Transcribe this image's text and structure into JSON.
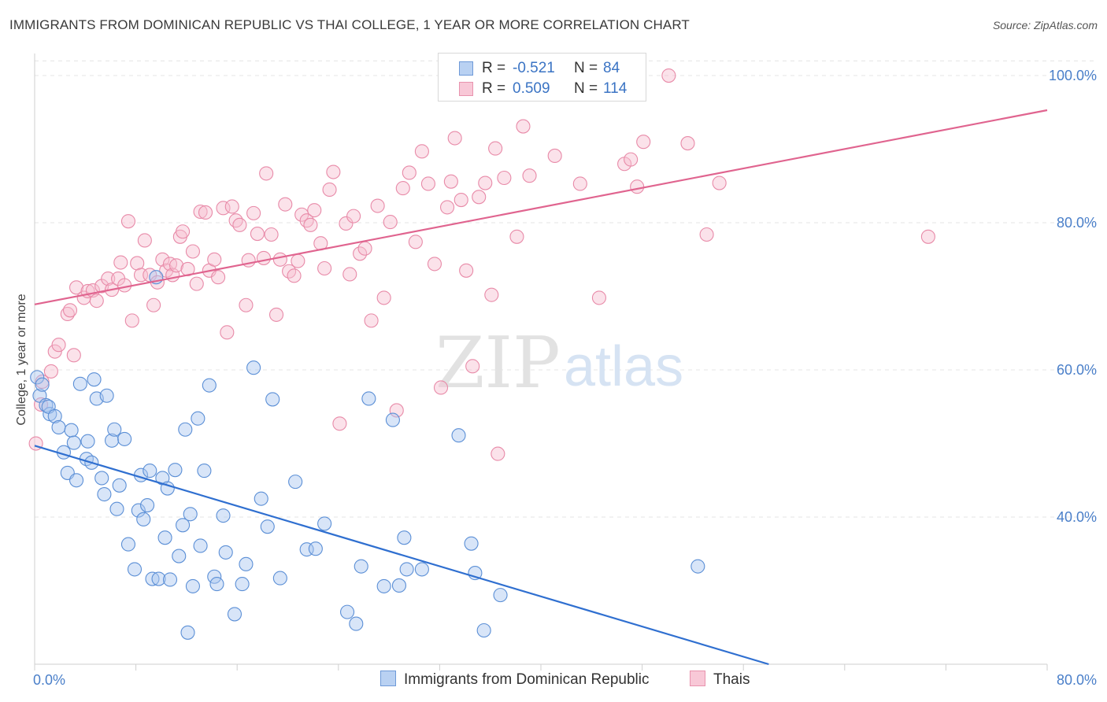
{
  "title": "IMMIGRANTS FROM DOMINICAN REPUBLIC VS THAI COLLEGE, 1 YEAR OR MORE CORRELATION CHART",
  "source": "Source: ZipAtlas.com",
  "watermark": {
    "zip": "ZIP",
    "atlas": "atlas"
  },
  "colors": {
    "blue_fill": "#a9c6ef",
    "blue_stroke": "#5b8fd6",
    "blue_line": "#2f6fd0",
    "pink_fill": "#f6bfd0",
    "pink_stroke": "#e88aa8",
    "pink_line": "#e0648f",
    "grid": "#e4e4e4",
    "tick_text": "#4a7fc9"
  },
  "stats": [
    {
      "r_label": "R =",
      "r_value": "-0.521",
      "n_label": "N =",
      "n_value": "84",
      "color": "blue"
    },
    {
      "r_label": "R =",
      "r_value": "0.509",
      "n_label": "N =",
      "n_value": "114",
      "color": "pink"
    }
  ],
  "legend": [
    {
      "label": "Immigrants from Dominican Republic",
      "color": "blue"
    },
    {
      "label": "Thais",
      "color": "pink"
    }
  ],
  "chart_data": {
    "type": "scatter",
    "title": "IMMIGRANTS FROM DOMINICAN REPUBLIC VS THAI COLLEGE, 1 YEAR OR MORE CORRELATION CHART",
    "xlabel": "",
    "ylabel": "College, 1 year or more",
    "xlim": [
      0,
      80
    ],
    "ylim": [
      20,
      103
    ],
    "x_tick_labels": [
      "0.0%",
      "80.0%"
    ],
    "y_ticks": [
      40,
      60,
      80,
      100
    ],
    "y_tick_labels": [
      "40.0%",
      "60.0%",
      "80.0%",
      "100.0%"
    ],
    "grid": true,
    "legend_position": "bottom",
    "series": [
      {
        "name": "Immigrants from Dominican Republic",
        "color": "blue",
        "trend": {
          "x": [
            0,
            58
          ],
          "y": [
            49.7,
            20
          ]
        },
        "points": [
          [
            0.2,
            59
          ],
          [
            0.4,
            56.5
          ],
          [
            0.9,
            55.2
          ],
          [
            1.2,
            54
          ],
          [
            1.1,
            55
          ],
          [
            1.6,
            53.7
          ],
          [
            1.9,
            52.2
          ],
          [
            2.3,
            48.8
          ],
          [
            2.6,
            46
          ],
          [
            2.9,
            51.8
          ],
          [
            3.1,
            50.1
          ],
          [
            3.3,
            45
          ],
          [
            3.6,
            58.1
          ],
          [
            4.1,
            47.9
          ],
          [
            4.2,
            50.3
          ],
          [
            4.5,
            47.4
          ],
          [
            4.7,
            58.7
          ],
          [
            4.9,
            56.1
          ],
          [
            5.3,
            45.3
          ],
          [
            5.5,
            43.1
          ],
          [
            5.7,
            56.5
          ],
          [
            6.1,
            50.4
          ],
          [
            6.3,
            51.9
          ],
          [
            6.5,
            41.1
          ],
          [
            6.7,
            44.3
          ],
          [
            7.1,
            50.6
          ],
          [
            7.4,
            36.3
          ],
          [
            7.9,
            32.9
          ],
          [
            8.2,
            40.9
          ],
          [
            8.4,
            45.7
          ],
          [
            8.6,
            39.7
          ],
          [
            8.9,
            41.6
          ],
          [
            9.1,
            46.3
          ],
          [
            9.3,
            31.6
          ],
          [
            9.6,
            72.6
          ],
          [
            9.8,
            31.6
          ],
          [
            10.1,
            45.3
          ],
          [
            10.3,
            37.2
          ],
          [
            10.5,
            43.9
          ],
          [
            10.7,
            31.5
          ],
          [
            11.1,
            46.4
          ],
          [
            11.4,
            34.7
          ],
          [
            11.7,
            38.9
          ],
          [
            11.9,
            51.9
          ],
          [
            12.1,
            24.3
          ],
          [
            12.3,
            40.4
          ],
          [
            12.5,
            30.6
          ],
          [
            12.9,
            53.4
          ],
          [
            13.1,
            36.1
          ],
          [
            13.4,
            46.3
          ],
          [
            13.8,
            57.9
          ],
          [
            14.2,
            31.9
          ],
          [
            14.4,
            30.9
          ],
          [
            14.9,
            40.2
          ],
          [
            15.1,
            35.2
          ],
          [
            15.8,
            26.8
          ],
          [
            16.4,
            30.9
          ],
          [
            16.7,
            33.6
          ],
          [
            17.3,
            60.3
          ],
          [
            17.9,
            42.5
          ],
          [
            18.4,
            38.7
          ],
          [
            18.8,
            56
          ],
          [
            19.4,
            31.7
          ],
          [
            20.6,
            44.8
          ],
          [
            21.5,
            35.6
          ],
          [
            22.2,
            35.7
          ],
          [
            22.9,
            39.1
          ],
          [
            24.7,
            27.1
          ],
          [
            25.4,
            25.5
          ],
          [
            25.8,
            33.3
          ],
          [
            26.4,
            56.1
          ],
          [
            27.6,
            30.6
          ],
          [
            28.3,
            53.2
          ],
          [
            28.8,
            30.7
          ],
          [
            29.2,
            37.2
          ],
          [
            29.4,
            32.9
          ],
          [
            30.6,
            32.9
          ],
          [
            33.5,
            51.1
          ],
          [
            34.5,
            36.4
          ],
          [
            34.8,
            32.4
          ],
          [
            35.5,
            24.6
          ],
          [
            36.8,
            29.4
          ],
          [
            52.4,
            33.3
          ],
          [
            0.6,
            58
          ]
        ]
      },
      {
        "name": "Thais",
        "color": "pink",
        "trend": {
          "x": [
            0,
            80
          ],
          "y": [
            68.9,
            95.3
          ]
        },
        "points": [
          [
            0.1,
            50
          ],
          [
            0.5,
            55.3
          ],
          [
            0.6,
            58.4
          ],
          [
            1.3,
            59.8
          ],
          [
            1.6,
            62.5
          ],
          [
            1.9,
            63.4
          ],
          [
            2.6,
            67.6
          ],
          [
            2.8,
            68.1
          ],
          [
            3.1,
            62
          ],
          [
            3.3,
            71.2
          ],
          [
            3.9,
            69.8
          ],
          [
            4.2,
            70.7
          ],
          [
            4.6,
            70.8
          ],
          [
            4.9,
            69.4
          ],
          [
            5.3,
            71.4
          ],
          [
            5.8,
            72.4
          ],
          [
            6.1,
            70.9
          ],
          [
            6.6,
            72.4
          ],
          [
            6.8,
            74.6
          ],
          [
            7.1,
            71.5
          ],
          [
            7.4,
            80.2
          ],
          [
            7.7,
            66.7
          ],
          [
            8.1,
            74.5
          ],
          [
            8.4,
            72.9
          ],
          [
            8.7,
            77.6
          ],
          [
            9.1,
            72.9
          ],
          [
            9.4,
            68.8
          ],
          [
            9.7,
            71.9
          ],
          [
            10.1,
            75
          ],
          [
            10.4,
            73.5
          ],
          [
            10.7,
            74.4
          ],
          [
            10.9,
            72.9
          ],
          [
            11.2,
            74.2
          ],
          [
            11.5,
            78.1
          ],
          [
            11.7,
            78.8
          ],
          [
            12.1,
            73.7
          ],
          [
            12.5,
            76.1
          ],
          [
            12.8,
            71.7
          ],
          [
            13.1,
            81.5
          ],
          [
            13.5,
            81.4
          ],
          [
            13.8,
            73.5
          ],
          [
            14.2,
            75
          ],
          [
            14.5,
            72.6
          ],
          [
            14.9,
            82
          ],
          [
            15.2,
            65.1
          ],
          [
            15.6,
            82.2
          ],
          [
            15.9,
            80.3
          ],
          [
            16.2,
            79.7
          ],
          [
            16.7,
            68.8
          ],
          [
            16.9,
            74.9
          ],
          [
            17.3,
            81.3
          ],
          [
            17.6,
            78.5
          ],
          [
            18.1,
            75.2
          ],
          [
            18.3,
            86.7
          ],
          [
            18.7,
            78.4
          ],
          [
            19.1,
            67.5
          ],
          [
            19.4,
            75
          ],
          [
            19.8,
            82.5
          ],
          [
            20.1,
            73.4
          ],
          [
            20.5,
            72.8
          ],
          [
            20.8,
            74.8
          ],
          [
            21.1,
            81.1
          ],
          [
            21.5,
            80.3
          ],
          [
            21.8,
            79.7
          ],
          [
            22.1,
            81.7
          ],
          [
            22.6,
            77.2
          ],
          [
            22.9,
            73.8
          ],
          [
            23.3,
            84.5
          ],
          [
            23.6,
            86.9
          ],
          [
            24.1,
            52.7
          ],
          [
            24.6,
            79.9
          ],
          [
            24.9,
            73
          ],
          [
            25.2,
            80.9
          ],
          [
            25.7,
            75.8
          ],
          [
            26.1,
            76.5
          ],
          [
            26.6,
            66.7
          ],
          [
            27.1,
            82.3
          ],
          [
            27.6,
            69.8
          ],
          [
            28.1,
            80.1
          ],
          [
            28.6,
            54.5
          ],
          [
            29.1,
            84.7
          ],
          [
            29.6,
            86.8
          ],
          [
            30.1,
            77.4
          ],
          [
            30.6,
            89.7
          ],
          [
            31.1,
            85.3
          ],
          [
            31.6,
            74.4
          ],
          [
            32.1,
            57.6
          ],
          [
            32.6,
            82.1
          ],
          [
            32.9,
            85.6
          ],
          [
            33.2,
            91.5
          ],
          [
            33.7,
            83.1
          ],
          [
            34.1,
            73.5
          ],
          [
            34.6,
            60.5
          ],
          [
            35.1,
            83.5
          ],
          [
            35.6,
            85.4
          ],
          [
            36.1,
            70.2
          ],
          [
            36.4,
            90.1
          ],
          [
            36.6,
            48.6
          ],
          [
            37.1,
            86.1
          ],
          [
            38.1,
            78.1
          ],
          [
            38.6,
            93.1
          ],
          [
            39.1,
            86.4
          ],
          [
            41.1,
            89.1
          ],
          [
            43.1,
            85.3
          ],
          [
            44.6,
            69.8
          ],
          [
            46.6,
            88
          ],
          [
            47.1,
            88.6
          ],
          [
            47.6,
            84.9
          ],
          [
            48.1,
            91
          ],
          [
            50.1,
            100
          ],
          [
            51.6,
            90.8
          ],
          [
            53.1,
            78.4
          ],
          [
            54.1,
            85.4
          ],
          [
            70.6,
            78.1
          ]
        ]
      }
    ]
  }
}
